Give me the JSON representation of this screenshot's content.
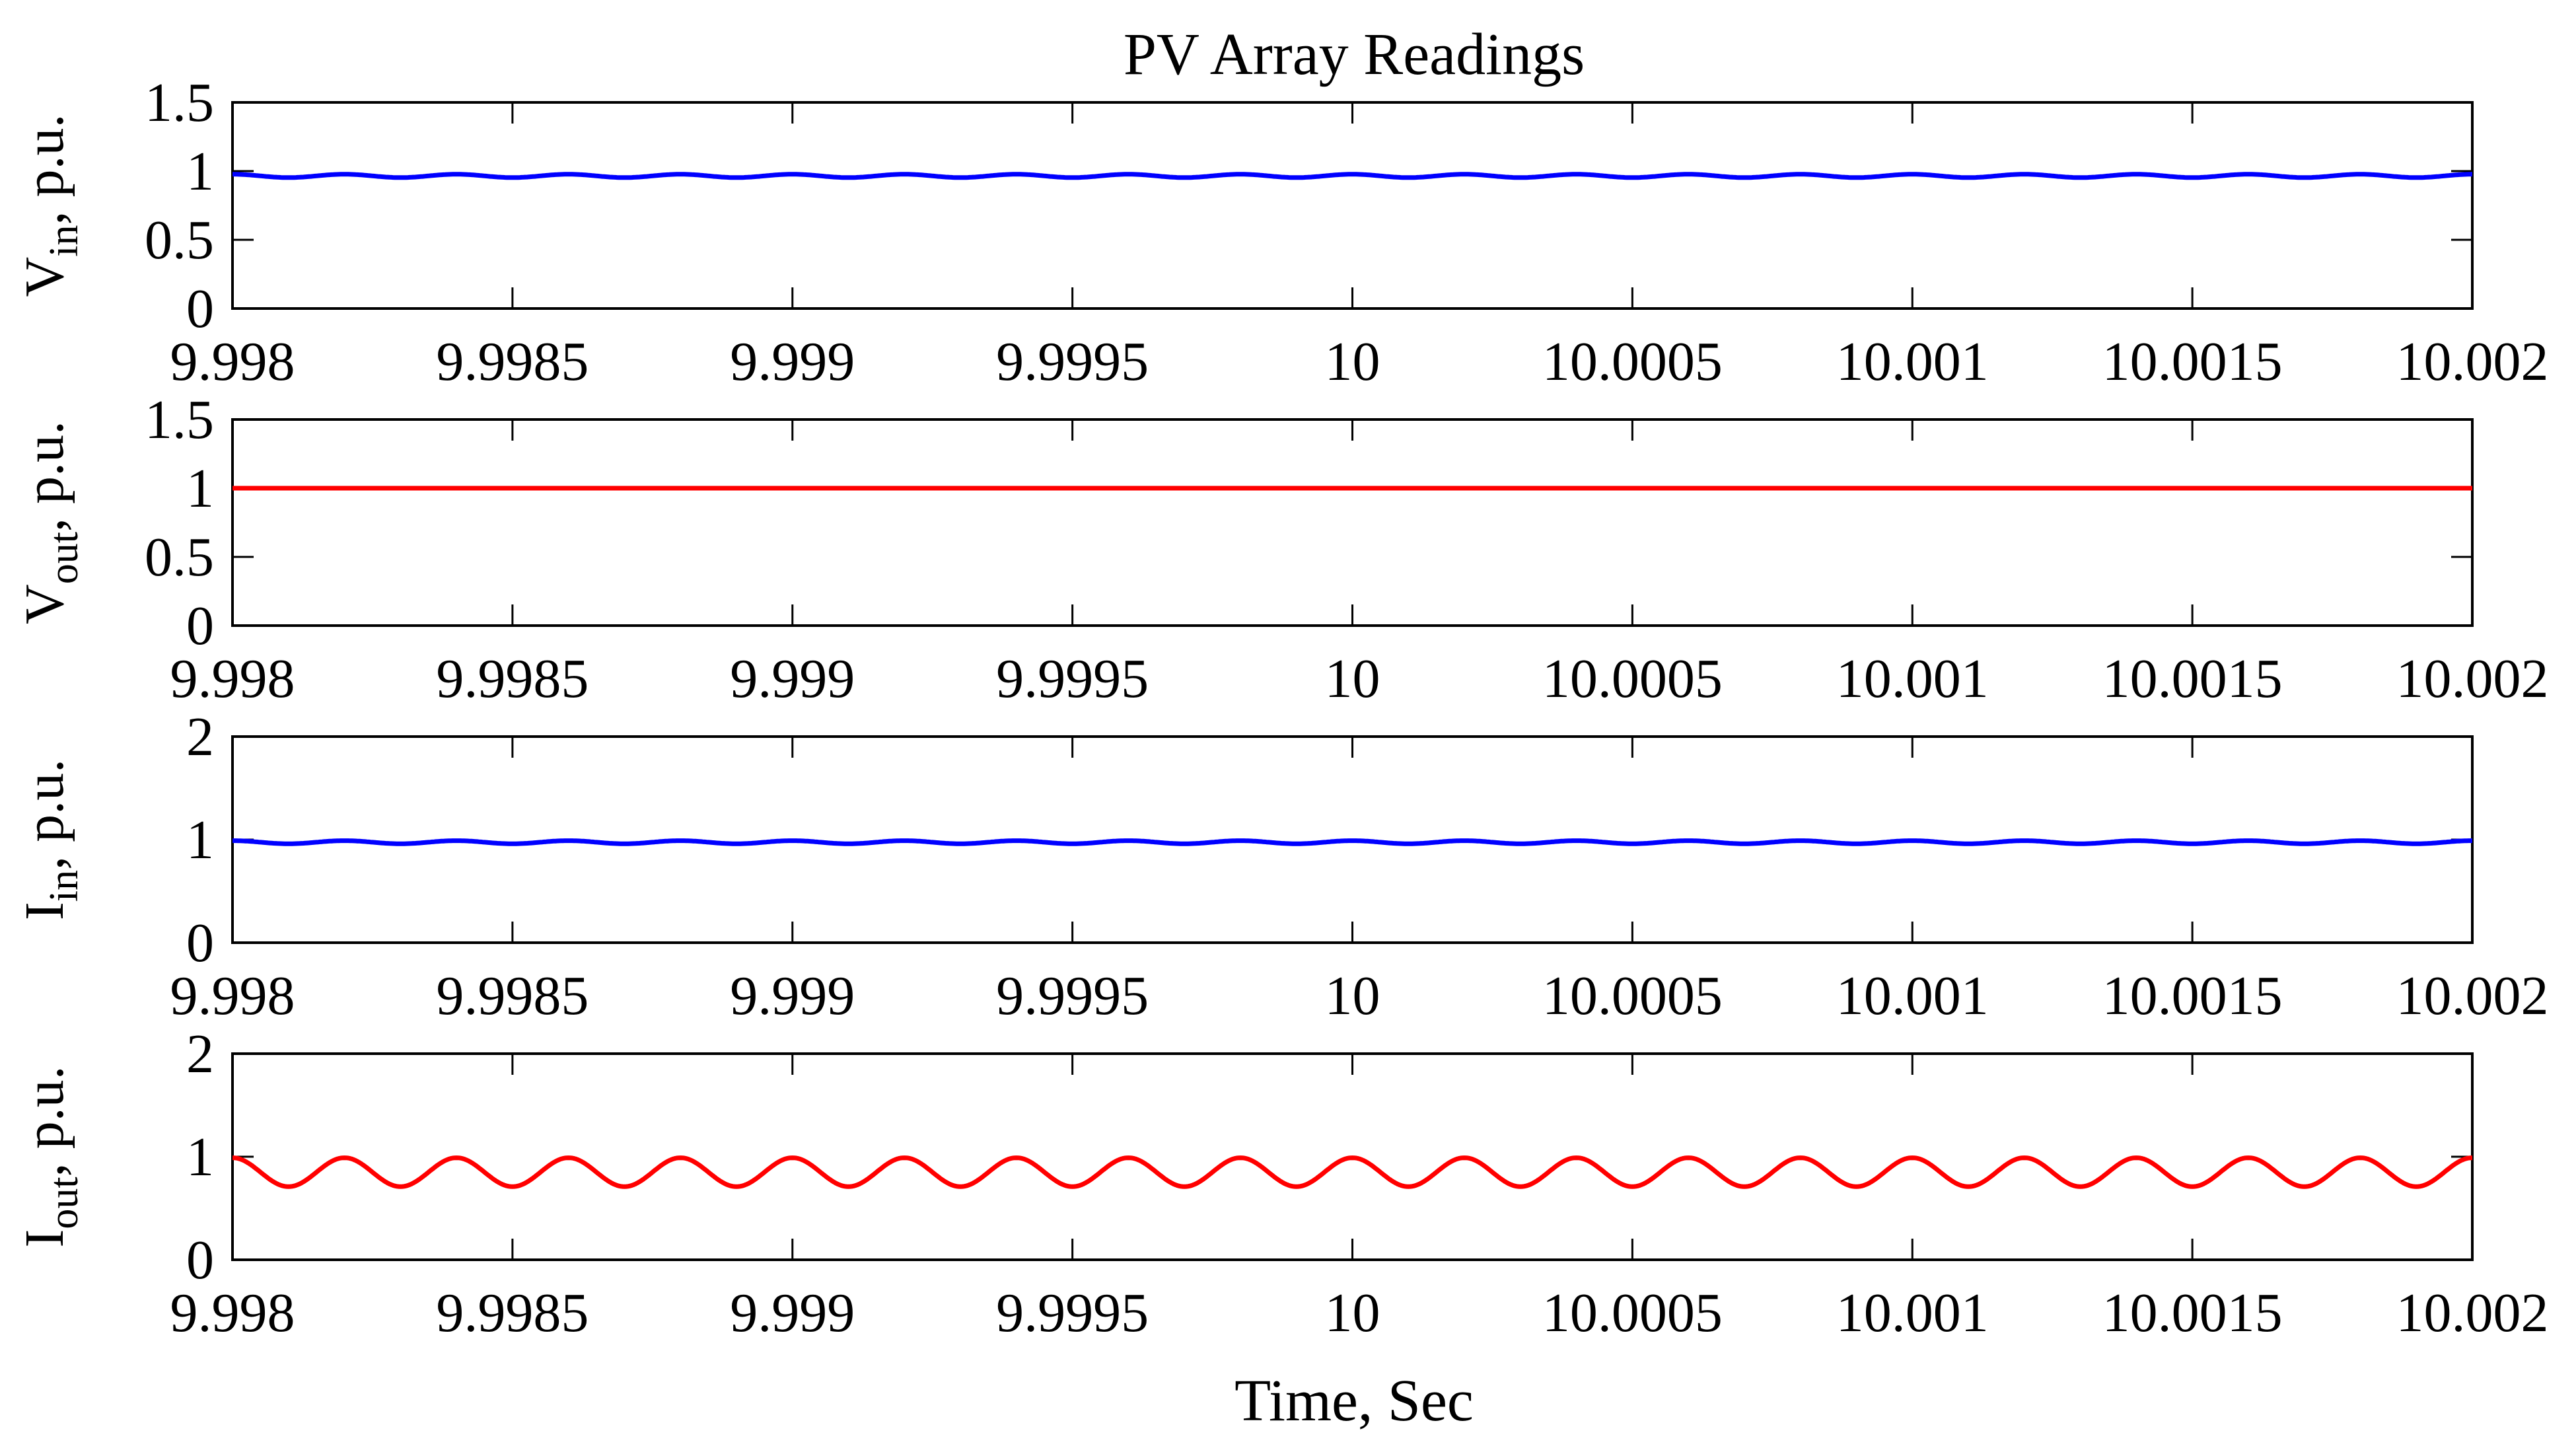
{
  "chart_data": {
    "type": "line",
    "title": "PV Array Readings",
    "xlabel": "Time, Sec",
    "xlim": [
      9.998,
      10.002
    ],
    "xticks": [
      "9.998",
      "9.9985",
      "9.999",
      "9.9995",
      "10",
      "10.0005",
      "10.001",
      "10.0015",
      "10.002"
    ],
    "grid": false,
    "panels": [
      {
        "ylabel": {
          "main": "V",
          "sub": "in",
          "rest": ", p.u."
        },
        "ylim": [
          0,
          1.5
        ],
        "yticks": [
          "0",
          "0.5",
          "1",
          "1.5"
        ],
        "color": "#0000ff",
        "series": {
          "mean": 0.965,
          "ripple_amplitude": 0.012,
          "ripple_period": 0.0002
        }
      },
      {
        "ylabel": {
          "main": "V",
          "sub": "out",
          "rest": ", p.u."
        },
        "ylim": [
          0,
          1.5
        ],
        "yticks": [
          "0",
          "0.5",
          "1",
          "1.5"
        ],
        "color": "#ff0000",
        "series": {
          "mean": 1.0,
          "ripple_amplitude": 0.0,
          "ripple_period": 0.0002
        }
      },
      {
        "ylabel": {
          "main": "I",
          "sub": "in",
          "rest": ", p.u."
        },
        "ylim": [
          0,
          2
        ],
        "yticks": [
          "0",
          "1",
          "2"
        ],
        "color": "#0000ff",
        "series": {
          "mean": 0.975,
          "ripple_amplitude": 0.015,
          "ripple_period": 0.0002
        }
      },
      {
        "ylabel": {
          "main": "I",
          "sub": "out",
          "rest": ", p.u."
        },
        "ylim": [
          0,
          2
        ],
        "yticks": [
          "0",
          "1",
          "2"
        ],
        "color": "#ff0000",
        "series": {
          "mean": 0.85,
          "ripple_amplitude": 0.14,
          "ripple_period": 0.0002
        }
      }
    ]
  }
}
